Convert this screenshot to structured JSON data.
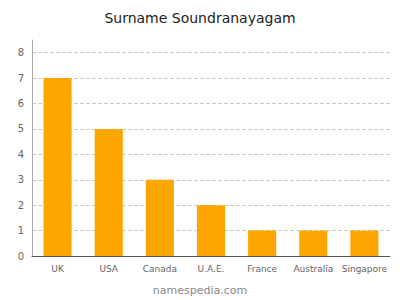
{
  "chart_data": {
    "type": "bar",
    "title": "Surname Soundranayagam",
    "categories": [
      "UK",
      "USA",
      "Canada",
      "U.A.E.",
      "France",
      "Australia",
      "Singapore"
    ],
    "values": [
      7,
      5,
      3,
      2,
      1,
      1,
      1
    ],
    "color": "#FFA500",
    "ylim": [
      0,
      8.5
    ],
    "yticks": [
      0,
      1,
      2,
      3,
      4,
      5,
      6,
      7,
      8
    ],
    "grid": true,
    "annotations": [
      "namespedia.com"
    ]
  }
}
